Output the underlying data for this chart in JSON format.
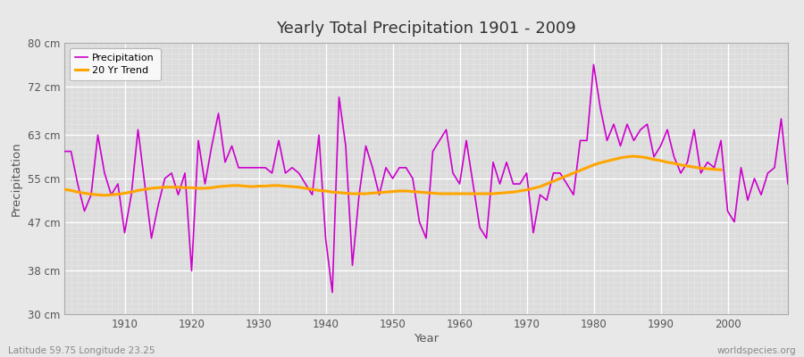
{
  "title": "Yearly Total Precipitation 1901 - 2009",
  "xlabel": "Year",
  "ylabel": "Precipitation",
  "bottom_left_label": "Latitude 59.75 Longitude 23.25",
  "bottom_right_label": "worldspecies.org",
  "background_color": "#e8e8e8",
  "plot_background_color": "#dcdcdc",
  "precipitation_color": "#cc00cc",
  "trend_color": "#FFA500",
  "yticks": [
    30,
    38,
    47,
    55,
    63,
    72,
    80
  ],
  "ytick_labels": [
    "30 cm",
    "38 cm",
    "47 cm",
    "55 cm",
    "63 cm",
    "72 cm",
    "80 cm"
  ],
  "years": [
    1901,
    1902,
    1903,
    1904,
    1905,
    1906,
    1907,
    1908,
    1909,
    1910,
    1911,
    1912,
    1913,
    1914,
    1915,
    1916,
    1917,
    1918,
    1919,
    1920,
    1921,
    1922,
    1923,
    1924,
    1925,
    1926,
    1927,
    1928,
    1929,
    1930,
    1931,
    1932,
    1933,
    1934,
    1935,
    1936,
    1937,
    1938,
    1939,
    1940,
    1941,
    1942,
    1943,
    1944,
    1945,
    1946,
    1947,
    1948,
    1949,
    1950,
    1951,
    1952,
    1953,
    1954,
    1955,
    1956,
    1957,
    1958,
    1959,
    1960,
    1961,
    1962,
    1963,
    1964,
    1965,
    1966,
    1967,
    1968,
    1969,
    1970,
    1971,
    1972,
    1973,
    1974,
    1975,
    1976,
    1977,
    1978,
    1979,
    1980,
    1981,
    1982,
    1983,
    1984,
    1985,
    1986,
    1987,
    1988,
    1989,
    1990,
    1991,
    1992,
    1993,
    1994,
    1995,
    1996,
    1997,
    1998,
    1999,
    2000,
    2001,
    2002,
    2003,
    2004,
    2005,
    2006,
    2007,
    2008,
    2009
  ],
  "precipitation": [
    60,
    60,
    54,
    49,
    52,
    63,
    56,
    52,
    54,
    45,
    52,
    64,
    54,
    44,
    50,
    55,
    56,
    52,
    56,
    38,
    62,
    54,
    61,
    67,
    58,
    61,
    57,
    57,
    57,
    57,
    57,
    56,
    62,
    56,
    57,
    56,
    54,
    52,
    63,
    44,
    34,
    70,
    61,
    39,
    52,
    61,
    57,
    52,
    57,
    55,
    57,
    57,
    55,
    47,
    44,
    60,
    62,
    64,
    56,
    54,
    62,
    54,
    46,
    44,
    58,
    54,
    58,
    54,
    54,
    56,
    45,
    52,
    51,
    56,
    56,
    54,
    52,
    62,
    62,
    76,
    68,
    62,
    65,
    61,
    65,
    62,
    64,
    65,
    59,
    61,
    64,
    59,
    56,
    58,
    64,
    56,
    58,
    57,
    62,
    49,
    47,
    57,
    51,
    55,
    52,
    56,
    57,
    66,
    54
  ],
  "trend": [
    53.0,
    52.8,
    52.5,
    52.3,
    52.1,
    52.0,
    51.9,
    52.0,
    52.1,
    52.3,
    52.5,
    52.8,
    53.0,
    53.2,
    53.3,
    53.4,
    53.4,
    53.4,
    53.3,
    53.3,
    53.2,
    53.2,
    53.3,
    53.5,
    53.6,
    53.7,
    53.7,
    53.6,
    53.5,
    53.6,
    53.6,
    53.7,
    53.7,
    53.6,
    53.5,
    53.4,
    53.2,
    53.0,
    52.8,
    52.7,
    52.5,
    52.4,
    52.3,
    52.2,
    52.2,
    52.2,
    52.3,
    52.4,
    52.5,
    52.6,
    52.7,
    52.7,
    52.6,
    52.5,
    52.4,
    52.3,
    52.2,
    52.2,
    52.2,
    52.2,
    52.2,
    52.2,
    52.2,
    52.2,
    52.2,
    52.3,
    52.4,
    52.5,
    52.7,
    52.9,
    53.2,
    53.5,
    54.0,
    54.5,
    55.0,
    55.5,
    56.0,
    56.5,
    57.0,
    57.5,
    57.9,
    58.2,
    58.5,
    58.8,
    59.0,
    59.1,
    59.0,
    58.8,
    58.5,
    58.3,
    58.0,
    57.8,
    57.5,
    57.3,
    57.1,
    56.9,
    56.8,
    56.7,
    56.6
  ],
  "xlim": [
    1901,
    2009
  ],
  "ylim": [
    30,
    80
  ]
}
